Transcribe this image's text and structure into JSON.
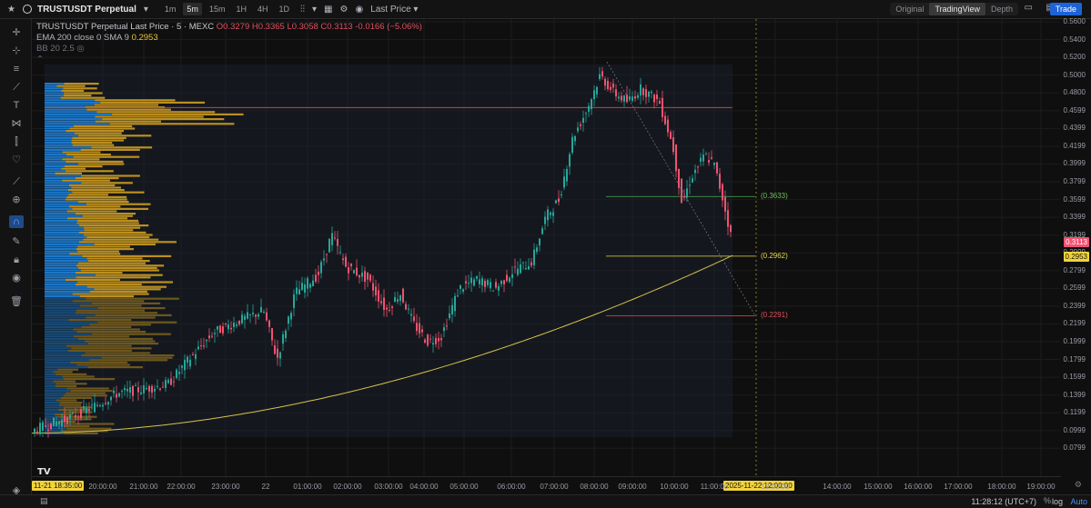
{
  "topbar": {
    "symbol": "TRUSTUSDT Perpetual",
    "timeframes": [
      "1m",
      "5m",
      "15m",
      "1H",
      "4H",
      "1D"
    ],
    "active_timeframe": "5m",
    "price_type": "Last Price",
    "views": [
      "Original",
      "TradingView",
      "Depth"
    ],
    "active_view": "TradingView",
    "trade_label": "Trade"
  },
  "legend": {
    "title": "TRUSTUSDT Perpetual Last Price · 5 · MEXC",
    "ohlc": "O0.3279 H0.3365 L0.3058 C0.3113 -0.0166 (−5.06%)",
    "ema_label": "EMA 200 close 0 SMA 9",
    "ema_value": "0.2953",
    "bb_label": "BB 20 2.5"
  },
  "price_axis": {
    "ticks": [
      "0.5600",
      "0.5400",
      "0.5200",
      "0.5000",
      "0.4800",
      "0.4599",
      "0.4399",
      "0.4199",
      "0.3999",
      "0.3799",
      "0.3599",
      "0.3399",
      "0.3199",
      "0.2999",
      "0.2799",
      "0.2599",
      "0.2399",
      "0.2199",
      "0.1999",
      "0.1799",
      "0.1599",
      "0.1399",
      "0.1199",
      "0.0999",
      "0.0799"
    ],
    "last_price_tag": "0.3113",
    "ema_tag": "0.2953"
  },
  "time_axis": {
    "ticks": [
      "20:00:00",
      "21:00:00",
      "22:00:00",
      "23:00:00",
      "22",
      "01:00:00",
      "02:00:00",
      "03:00:00",
      "04:00:00",
      "05:00:00",
      "06:00:00",
      "07:00:00",
      "08:00:00",
      "09:00:00",
      "10:00:00",
      "11:00:00",
      "12:00:00",
      "14:00:00",
      "15:00:00",
      "16:00:00",
      "17:00:00",
      "18:00:00",
      "19:00:00"
    ],
    "start_tag": "11-21  18:35:00",
    "cursor_tag": "2025-11-22  12:00:00"
  },
  "annotations": {
    "upper": "(0.3633)",
    "mid": "(0.2962)",
    "lower": "(0.2291)"
  },
  "colors": {
    "up": "#26a69a",
    "down": "#ef5370",
    "vp_up": "#1e88e5",
    "vp_down": "#d9a520",
    "ema": "#d9c24a"
  },
  "bottombar": {
    "clock": "11:28:12 (UTC+7)",
    "log_label": "log",
    "auto_label": "Auto"
  },
  "chart_data": {
    "type": "candlestick",
    "title": "TRUSTUSDT Perpetual Last Price · 5 · MEXC",
    "x_range": [
      "2025-11-21 18:35",
      "2025-11-22 11:25"
    ],
    "y_range": [
      0.0799,
      0.56
    ],
    "key_points": [
      {
        "time": "18:35",
        "price": 0.0999
      },
      {
        "time": "21:00",
        "price": 0.145
      },
      {
        "time": "23:00",
        "price": 0.215
      },
      {
        "time": "02:00",
        "price": 0.325
      },
      {
        "time": "04:00",
        "price": 0.203
      },
      {
        "time": "06:00",
        "price": 0.285
      },
      {
        "time": "07:30",
        "price": 0.44
      },
      {
        "time": "08:00",
        "price": 0.515
      },
      {
        "time": "09:00",
        "price": 0.485
      },
      {
        "time": "10:00",
        "price": 0.355
      },
      {
        "time": "10:30",
        "price": 0.415
      },
      {
        "time": "11:25",
        "price": 0.3113
      }
    ],
    "ema200_last": 0.2953,
    "levels": [
      0.3633,
      0.2962,
      0.2291
    ]
  }
}
